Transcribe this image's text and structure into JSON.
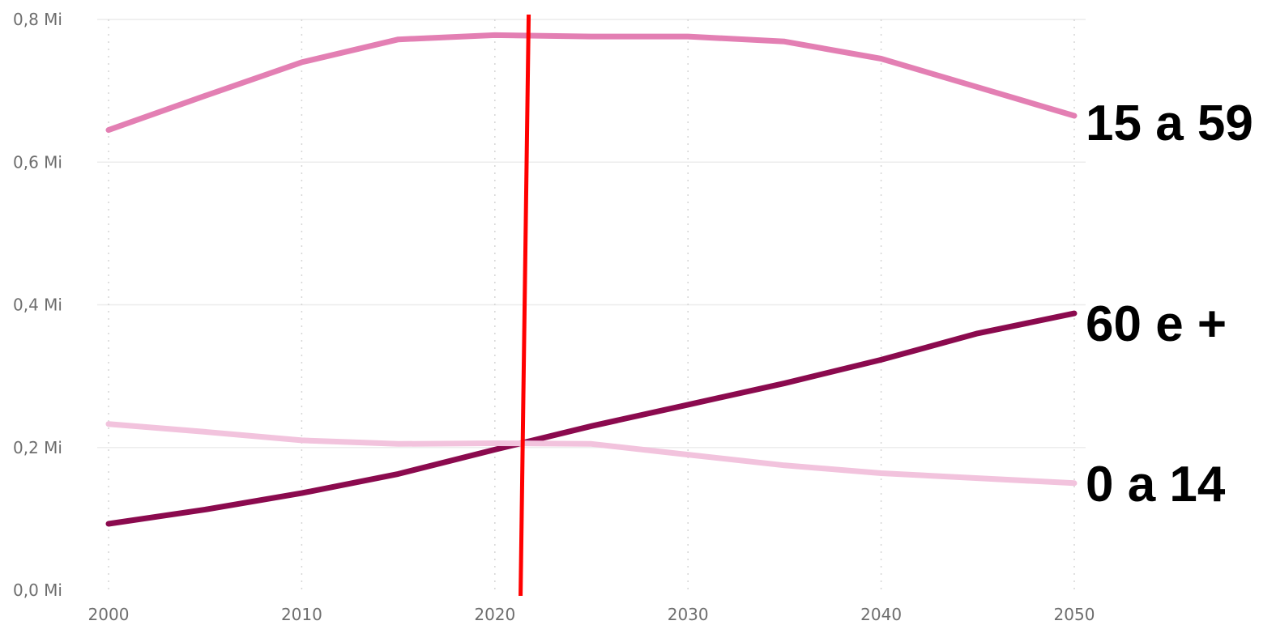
{
  "chart_data": {
    "type": "line",
    "x": [
      2000,
      2005,
      2010,
      2015,
      2020,
      2025,
      2030,
      2035,
      2040,
      2045,
      2050
    ],
    "xlim": [
      2000,
      2050
    ],
    "ylim": [
      0,
      0.8
    ],
    "xticks": [
      "2000",
      "2010",
      "2020",
      "2030",
      "2040",
      "2050"
    ],
    "yticks": [
      "0,0 Mi",
      "0,2 Mi",
      "0,4 Mi",
      "0,6 Mi",
      "0,8 Mi"
    ],
    "grid": true,
    "series": [
      {
        "name": "15 a 59",
        "color": "#e37fb3",
        "values": [
          0.645,
          0.693,
          0.74,
          0.772,
          0.778,
          0.776,
          0.776,
          0.769,
          0.745,
          0.705,
          0.665
        ]
      },
      {
        "name": "60 e +",
        "color": "#8b0a4e",
        "values": [
          0.093,
          0.113,
          0.136,
          0.163,
          0.197,
          0.23,
          0.26,
          0.29,
          0.323,
          0.36,
          0.388
        ]
      },
      {
        "name": "0 a 14",
        "color": "#f2c3dd",
        "values": [
          0.233,
          0.222,
          0.21,
          0.205,
          0.206,
          0.205,
          0.19,
          0.175,
          0.164,
          0.157,
          0.15
        ]
      }
    ],
    "reference_line": {
      "x": 2021.5,
      "color": "#ff0000"
    }
  }
}
